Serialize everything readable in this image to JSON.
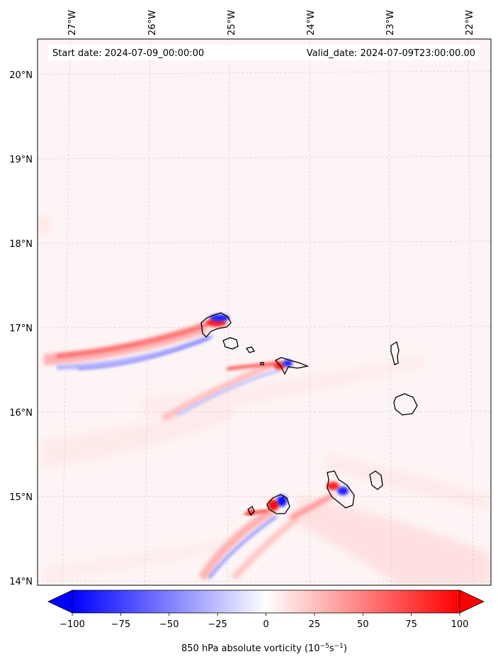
{
  "header": {
    "start_date": "Start date: 2024-07-09_00:00:00",
    "valid_date": "Valid_date: 2024-07-09T23:00:00.00"
  },
  "axes": {
    "lon_labels": [
      "27°W",
      "26°W",
      "25°W",
      "24°W",
      "23°W",
      "22°W"
    ],
    "lat_labels": [
      "20°N",
      "19°N",
      "18°N",
      "17°N",
      "16°N",
      "15°N",
      "14°N"
    ]
  },
  "colorbar": {
    "ticks": [
      "−100",
      "−75",
      "−50",
      "−25",
      "0",
      "25",
      "50",
      "75",
      "100"
    ],
    "min": -100,
    "max": 100,
    "low_color": "#0000ff",
    "mid_color": "#ffffff",
    "high_color": "#ff0000",
    "label_prefix": "850 hPa absolute vorticity (10",
    "label_exp1": "−5",
    "label_mid": "s",
    "label_exp2": "−1",
    "label_suffix": ")"
  },
  "colors": {
    "background_field": "#fdf5f5",
    "coastline": "#000000",
    "grid": "#cccccc"
  }
}
